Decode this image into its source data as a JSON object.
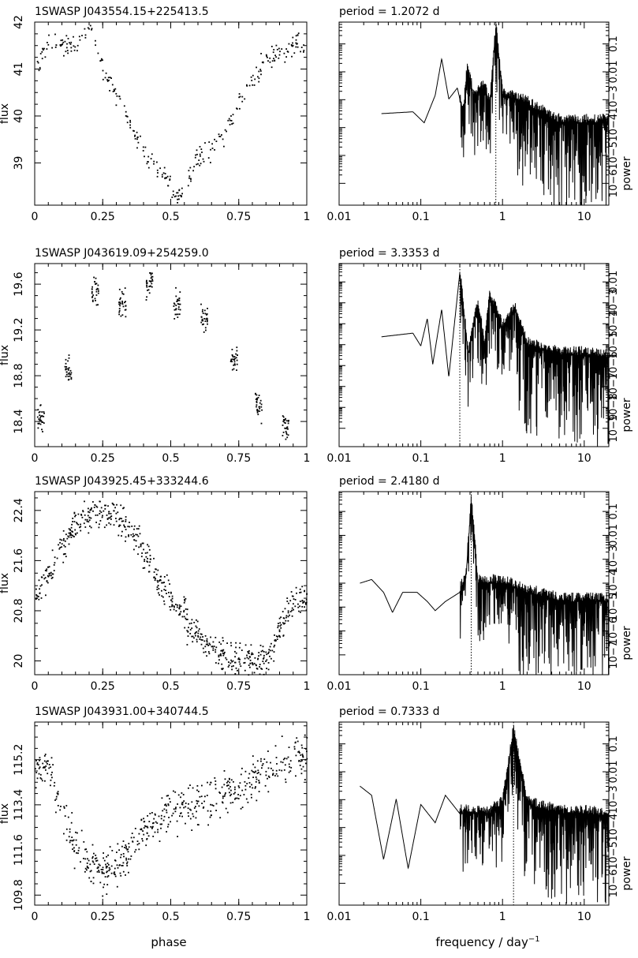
{
  "figure": {
    "xlabel_left": "phase",
    "xlabel_right": "frequency / day",
    "xlabel_right_sup": "−1"
  },
  "chart_data": [
    {
      "type": "scatter",
      "title": "1SWASP J043554.15+225413.5",
      "ylabel": "flux",
      "xlim": [
        0,
        1
      ],
      "ylim": [
        38.1,
        42.0
      ],
      "xticks": [
        0,
        0.25,
        0.5,
        0.75,
        1
      ],
      "xtick_labels": [
        "0",
        "0.25",
        "0.5",
        "0.75",
        "1"
      ],
      "yticks": [
        39,
        40,
        41,
        42
      ],
      "ytick_labels": [
        "39",
        "40",
        "41",
        "42"
      ],
      "series": [
        {
          "shape": [
            [
              0.0,
              41.0
            ],
            [
              0.05,
              41.6
            ],
            [
              0.15,
              41.5
            ],
            [
              0.2,
              41.9
            ],
            [
              0.25,
              40.9
            ],
            [
              0.32,
              40.3
            ],
            [
              0.4,
              39.2
            ],
            [
              0.47,
              38.8
            ],
            [
              0.52,
              38.2
            ],
            [
              0.6,
              39.1
            ],
            [
              0.7,
              39.7
            ],
            [
              0.8,
              40.8
            ],
            [
              0.85,
              41.2
            ],
            [
              0.97,
              41.6
            ],
            [
              1.0,
              41.2
            ]
          ],
          "npoints": 300,
          "scatter": 0.45
        }
      ]
    },
    {
      "type": "line",
      "title": "period =   1.2072 d",
      "ylabel": "power",
      "xscale": "log",
      "xlim": [
        0.01,
        20
      ],
      "xticks": [
        0.01,
        0.1,
        1,
        10
      ],
      "xtick_labels": [
        "0.01",
        "0.1",
        "1",
        "10"
      ],
      "ytick_labels": [
        "10−6",
        "10−5",
        "10−4",
        "10−3",
        "0.01",
        "0.1"
      ],
      "period_line_freq": 0.828,
      "series": [
        {
          "envelope": [
            [
              0.033,
              0.5
            ],
            [
              0.08,
              0.49
            ],
            [
              0.11,
              0.55
            ],
            [
              0.15,
              0.4
            ],
            [
              0.18,
              0.2
            ],
            [
              0.22,
              0.42
            ],
            [
              0.28,
              0.36
            ],
            [
              0.33,
              0.5
            ],
            [
              0.37,
              0.26
            ],
            [
              0.45,
              0.42
            ],
            [
              0.6,
              0.35
            ],
            [
              0.7,
              0.45
            ],
            [
              0.828,
              0.03
            ],
            [
              1.0,
              0.4
            ],
            [
              2.0,
              0.45
            ],
            [
              5.0,
              0.55
            ],
            [
              10.0,
              0.55
            ],
            [
              20.0,
              0.55
            ]
          ],
          "start_freq": 0.033
        }
      ]
    },
    {
      "type": "scatter",
      "title": "1SWASP J043619.09+254259.0",
      "ylabel": "flux",
      "xlim": [
        0,
        1
      ],
      "ylim": [
        18.18,
        19.78
      ],
      "xticks": [
        0,
        0.25,
        0.5,
        0.75,
        1
      ],
      "xtick_labels": [
        "0",
        "0.25",
        "0.5",
        "0.75",
        "1"
      ],
      "yticks": [
        18.4,
        18.8,
        19.2,
        19.6
      ],
      "ytick_labels": [
        "18.4",
        "18.8",
        "19.2",
        "19.6"
      ],
      "series": [
        {
          "clusters": [
            [
              0.02,
              18.45,
              0.25
            ],
            [
              0.12,
              18.85,
              0.3
            ],
            [
              0.22,
              19.55,
              0.3
            ],
            [
              0.32,
              19.45,
              0.3
            ],
            [
              0.42,
              19.6,
              0.25
            ],
            [
              0.52,
              19.45,
              0.3
            ],
            [
              0.62,
              19.3,
              0.3
            ],
            [
              0.73,
              18.95,
              0.25
            ],
            [
              0.82,
              18.55,
              0.3
            ],
            [
              0.92,
              18.35,
              0.3
            ]
          ],
          "npoints": 290
        }
      ]
    },
    {
      "type": "line",
      "title": "period =   3.3353 d",
      "ylabel": "power",
      "xscale": "log",
      "xlim": [
        0.01,
        20
      ],
      "xticks": [
        0.01,
        0.1,
        1,
        10
      ],
      "xtick_labels": [
        "0.01",
        "0.1",
        "1",
        "10"
      ],
      "ytick_labels": [
        "10−9",
        "10−8",
        "10−7",
        "10−6",
        "10−5",
        "10−4",
        "10−3",
        "0.01"
      ],
      "period_line_freq": 0.3,
      "series": [
        {
          "envelope": [
            [
              0.033,
              0.4
            ],
            [
              0.08,
              0.38
            ],
            [
              0.1,
              0.45
            ],
            [
              0.12,
              0.3
            ],
            [
              0.14,
              0.55
            ],
            [
              0.18,
              0.25
            ],
            [
              0.22,
              0.62
            ],
            [
              0.3,
              0.05
            ],
            [
              0.38,
              0.5
            ],
            [
              0.5,
              0.22
            ],
            [
              0.6,
              0.45
            ],
            [
              0.7,
              0.18
            ],
            [
              1.0,
              0.35
            ],
            [
              1.4,
              0.25
            ],
            [
              2.0,
              0.45
            ],
            [
              5.0,
              0.5
            ],
            [
              10.0,
              0.5
            ],
            [
              20.0,
              0.52
            ]
          ],
          "start_freq": 0.033
        }
      ]
    },
    {
      "type": "scatter",
      "title": "1SWASP J043925.45+333244.6",
      "ylabel": "flux",
      "xlim": [
        0,
        1
      ],
      "ylim": [
        19.78,
        22.7
      ],
      "xticks": [
        0,
        0.25,
        0.5,
        0.75,
        1
      ],
      "xtick_labels": [
        "0",
        "0.25",
        "0.5",
        "0.75",
        "1"
      ],
      "yticks": [
        20,
        20.8,
        21.6,
        22.4
      ],
      "ytick_labels": [
        "20",
        "20.8",
        "21.6",
        "22.4"
      ],
      "series": [
        {
          "shape": [
            [
              0.0,
              21.0
            ],
            [
              0.05,
              21.4
            ],
            [
              0.1,
              21.9
            ],
            [
              0.15,
              22.2
            ],
            [
              0.22,
              22.4
            ],
            [
              0.3,
              22.3
            ],
            [
              0.38,
              21.9
            ],
            [
              0.45,
              21.3
            ],
            [
              0.52,
              20.9
            ],
            [
              0.58,
              20.5
            ],
            [
              0.65,
              20.2
            ],
            [
              0.75,
              20.0
            ],
            [
              0.85,
              20.0
            ],
            [
              0.95,
              21.0
            ],
            [
              1.0,
              21.0
            ]
          ],
          "npoints": 650,
          "scatter": 0.5
        }
      ]
    },
    {
      "type": "line",
      "title": "period =   2.4180 d",
      "ylabel": "power",
      "xscale": "log",
      "xlim": [
        0.01,
        20
      ],
      "xticks": [
        0.01,
        0.1,
        1,
        10
      ],
      "xtick_labels": [
        "0.01",
        "0.1",
        "1",
        "10"
      ],
      "ytick_labels": [
        "10−7",
        "10−6",
        "10−5",
        "10−4",
        "10−3",
        "0.01",
        "0.1"
      ],
      "period_line_freq": 0.414,
      "series": [
        {
          "envelope": [
            [
              0.018,
              0.5
            ],
            [
              0.025,
              0.48
            ],
            [
              0.035,
              0.55
            ],
            [
              0.045,
              0.66
            ],
            [
              0.06,
              0.55
            ],
            [
              0.09,
              0.55
            ],
            [
              0.12,
              0.6
            ],
            [
              0.15,
              0.65
            ],
            [
              0.2,
              0.6
            ],
            [
              0.3,
              0.55
            ],
            [
              0.36,
              0.45
            ],
            [
              0.414,
              0.04
            ],
            [
              0.5,
              0.5
            ],
            [
              1.0,
              0.5
            ],
            [
              2.0,
              0.55
            ],
            [
              5.0,
              0.6
            ],
            [
              10.0,
              0.6
            ],
            [
              20.0,
              0.6
            ]
          ],
          "start_freq": 0.018
        }
      ]
    },
    {
      "type": "scatter",
      "title": "1SWASP J043931.00+340744.5",
      "ylabel": "flux",
      "xlim": [
        0,
        1
      ],
      "ylim": [
        109.4,
        116.7
      ],
      "xticks": [
        0,
        0.25,
        0.5,
        0.75,
        1
      ],
      "xtick_labels": [
        "0",
        "0.25",
        "0.5",
        "0.75",
        "1"
      ],
      "yticks": [
        109.8,
        111.6,
        113.4,
        115.2
      ],
      "ytick_labels": [
        "109.8",
        "111.6",
        "113.4",
        "115.2"
      ],
      "series": [
        {
          "shape": [
            [
              0.0,
              115.0
            ],
            [
              0.05,
              114.8
            ],
            [
              0.1,
              113.2
            ],
            [
              0.15,
              111.8
            ],
            [
              0.2,
              111.0
            ],
            [
              0.25,
              110.9
            ],
            [
              0.3,
              111.1
            ],
            [
              0.35,
              111.6
            ],
            [
              0.4,
              112.4
            ],
            [
              0.5,
              113.2
            ],
            [
              0.6,
              113.4
            ],
            [
              0.7,
              113.9
            ],
            [
              0.8,
              114.4
            ],
            [
              0.9,
              115.2
            ],
            [
              1.0,
              115.3
            ]
          ],
          "npoints": 560,
          "scatter": 1.7
        }
      ]
    },
    {
      "type": "line",
      "title": "period =   0.7333 d",
      "ylabel": "power",
      "xscale": "log",
      "xlim": [
        0.01,
        20
      ],
      "xticks": [
        0.01,
        0.1,
        1,
        10
      ],
      "xtick_labels": [
        "0.01",
        "0.1",
        "1",
        "10"
      ],
      "ytick_labels": [
        "10−6",
        "10−5",
        "10−4",
        "10−3",
        "0.01",
        "0.1"
      ],
      "period_line_freq": 1.364,
      "series": [
        {
          "envelope": [
            [
              0.018,
              0.35
            ],
            [
              0.025,
              0.4
            ],
            [
              0.035,
              0.75
            ],
            [
              0.05,
              0.42
            ],
            [
              0.07,
              0.8
            ],
            [
              0.1,
              0.45
            ],
            [
              0.15,
              0.55
            ],
            [
              0.2,
              0.4
            ],
            [
              0.3,
              0.5
            ],
            [
              0.45,
              0.5
            ],
            [
              0.7,
              0.5
            ],
            [
              1.0,
              0.45
            ],
            [
              1.364,
              0.05
            ],
            [
              2.0,
              0.45
            ],
            [
              5.0,
              0.5
            ],
            [
              10.0,
              0.5
            ],
            [
              20.0,
              0.52
            ]
          ],
          "start_freq": 0.018
        }
      ]
    }
  ]
}
